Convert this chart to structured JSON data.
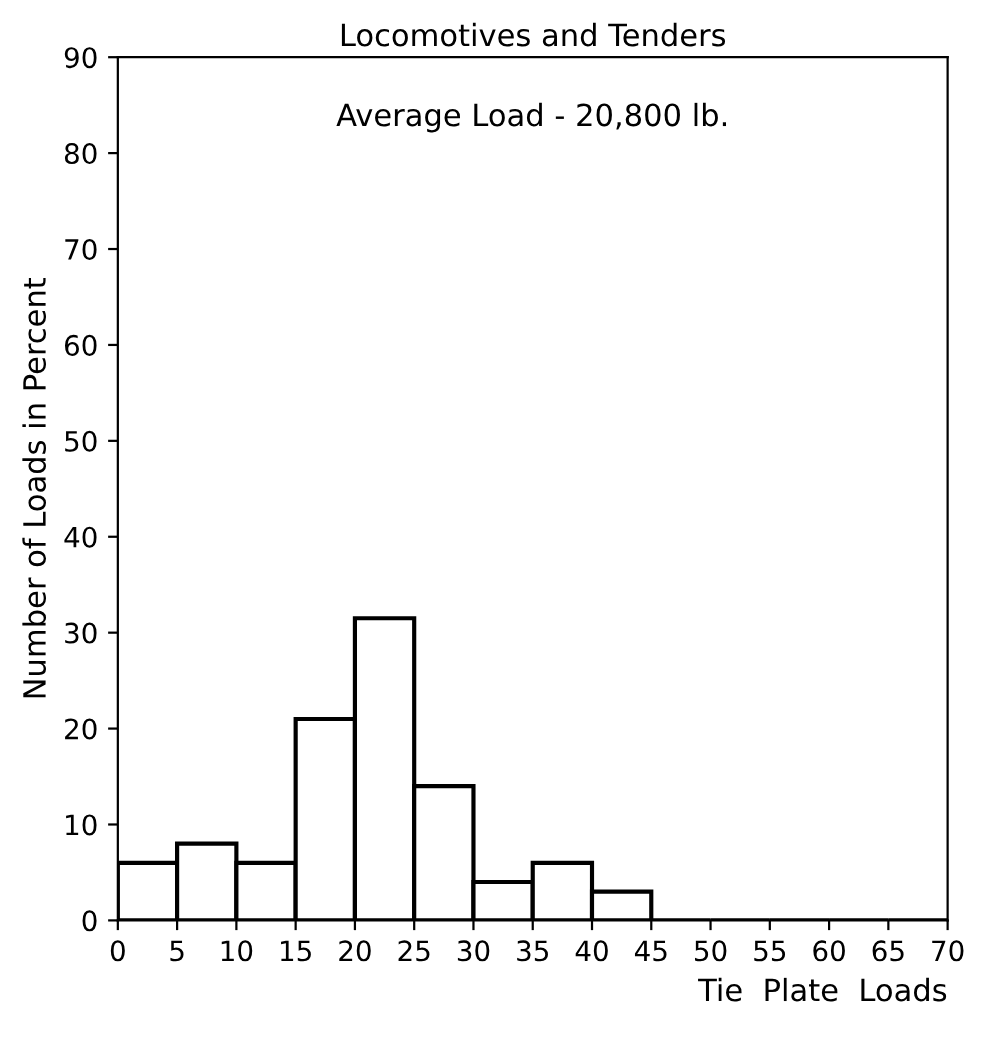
{
  "chart_data": {
    "type": "histogram",
    "title": "Locomotives and Tenders",
    "xlabel": "Tie  Plate  Loads",
    "ylabel": "Number of Loads in Percent",
    "annotations": [
      "Average Load - 20,800 lb."
    ],
    "bins": [
      0,
      5,
      10,
      15,
      20,
      25,
      30,
      35,
      40,
      45,
      50,
      55,
      60,
      65,
      70
    ],
    "values": [
      6,
      8,
      6,
      21,
      31.5,
      14,
      4,
      6,
      3,
      0,
      0,
      0,
      0,
      0
    ],
    "color": "#ffffff",
    "xlim": [
      0,
      70
    ],
    "xticks": [
      0,
      5,
      10,
      15,
      20,
      25,
      30,
      35,
      40,
      45,
      50,
      55,
      60,
      65,
      70
    ],
    "ylim": [
      0,
      90
    ],
    "yticks": [
      0,
      10,
      20,
      30,
      40,
      50,
      60,
      70,
      80,
      90
    ],
    "grid": false
  }
}
